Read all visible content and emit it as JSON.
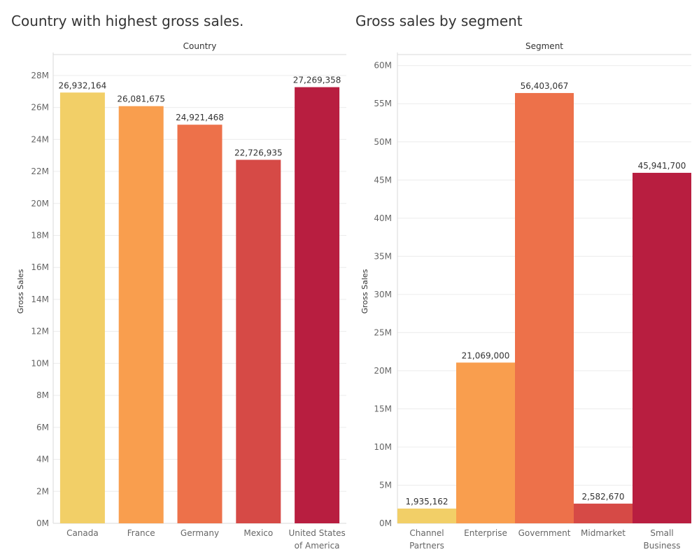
{
  "chart_data": [
    {
      "type": "bar",
      "title": "Country with highest gross sales.",
      "column_header": "Country",
      "ylabel": "Gross Sales",
      "categories": [
        [
          "Canada"
        ],
        [
          "France"
        ],
        [
          "Germany"
        ],
        [
          "Mexico"
        ],
        [
          "United States",
          "of America"
        ]
      ],
      "values": [
        26932164,
        26081675,
        24921468,
        22726935,
        27269358
      ],
      "value_labels": [
        "26,932,164",
        "26,081,675",
        "24,921,468",
        "22,726,935",
        "27,269,358"
      ],
      "colors": [
        "#F2CF67",
        "#F99E4E",
        "#ED714A",
        "#D64A46",
        "#B81E40"
      ],
      "ylim": [
        0,
        29000000
      ],
      "yticks": [
        0,
        2000000,
        4000000,
        6000000,
        8000000,
        10000000,
        12000000,
        14000000,
        16000000,
        18000000,
        20000000,
        22000000,
        24000000,
        26000000,
        28000000
      ],
      "ytick_labels": [
        "0M",
        "2M",
        "4M",
        "6M",
        "8M",
        "10M",
        "12M",
        "14M",
        "16M",
        "18M",
        "20M",
        "22M",
        "24M",
        "26M",
        "28M"
      ],
      "grid": true
    },
    {
      "type": "bar",
      "title": "Gross sales by segment",
      "column_header": "Segment",
      "ylabel": "Gross Sales",
      "categories": [
        [
          "Channel",
          "Partners"
        ],
        [
          "Enterprise"
        ],
        [
          "Government"
        ],
        [
          "Midmarket"
        ],
        [
          "Small",
          "Business"
        ]
      ],
      "values": [
        1935162,
        21069000,
        56403067,
        2582670,
        45941700
      ],
      "value_labels": [
        "1,935,162",
        "21,069,000",
        "56,403,067",
        "2,582,670",
        "45,941,700"
      ],
      "colors": [
        "#F2CF67",
        "#F99E4E",
        "#ED714A",
        "#D64A46",
        "#B81E40"
      ],
      "ylim": [
        0,
        60800000
      ],
      "yticks": [
        0,
        5000000,
        10000000,
        15000000,
        20000000,
        25000000,
        30000000,
        35000000,
        40000000,
        45000000,
        50000000,
        55000000,
        60000000
      ],
      "ytick_labels": [
        "0M",
        "5M",
        "10M",
        "15M",
        "20M",
        "25M",
        "30M",
        "35M",
        "40M",
        "45M",
        "50M",
        "55M",
        "60M"
      ],
      "grid": true
    }
  ]
}
